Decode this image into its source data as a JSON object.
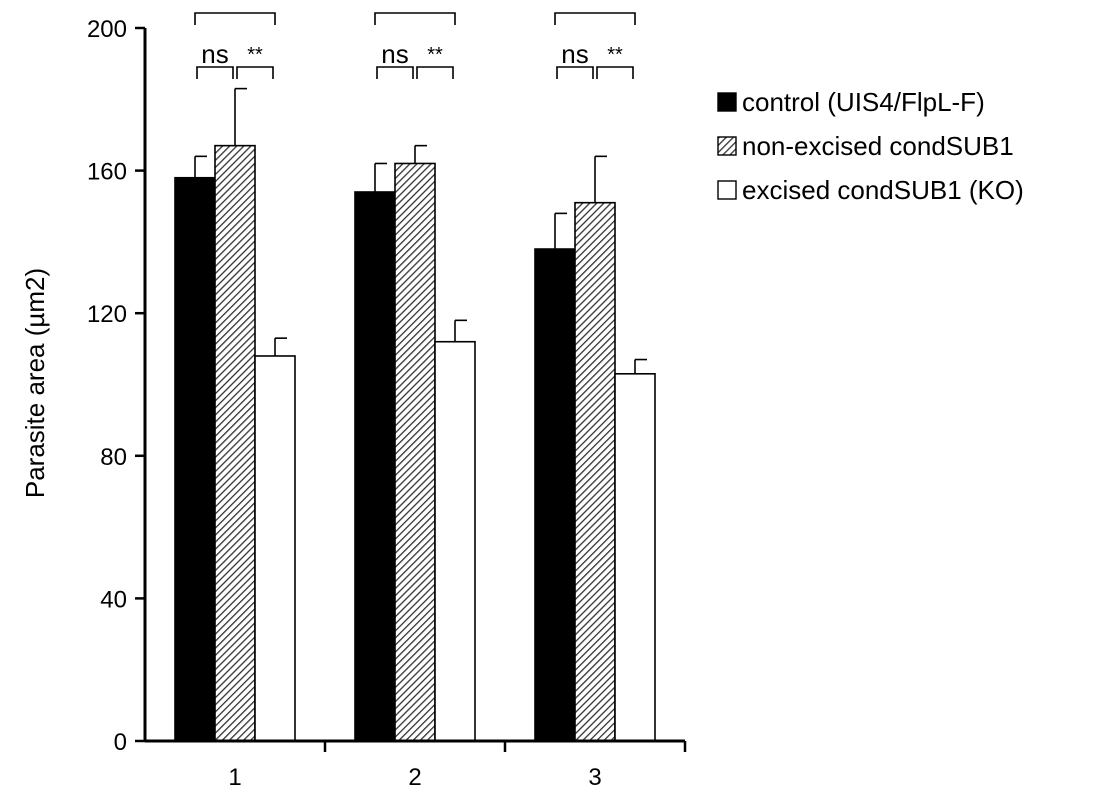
{
  "chart_data": {
    "type": "bar",
    "ylabel": "Parasite area (µm2)",
    "xlabel": "",
    "ylim": [
      0,
      200
    ],
    "yticks": [
      0,
      40,
      80,
      120,
      160,
      200
    ],
    "categories": [
      "1",
      "2",
      "3"
    ],
    "legend_position": "right",
    "series": [
      {
        "name": "control (UIS4/FlpL-F)",
        "fill": "solid-black",
        "color": "#000000",
        "values": [
          158,
          154,
          138
        ],
        "errors": [
          6,
          8,
          10
        ]
      },
      {
        "name": "non-excised condSUB1",
        "fill": "diagonal-hatch",
        "color": "#555555",
        "values": [
          167,
          162,
          151
        ],
        "errors": [
          16,
          5,
          13
        ]
      },
      {
        "name": "excised condSUB1 (KO)",
        "fill": "white",
        "color": "#ffffff",
        "values": [
          108,
          112,
          103
        ],
        "errors": [
          5,
          6,
          4
        ]
      }
    ],
    "significance": [
      {
        "from": 0,
        "to": 2,
        "label": "**",
        "level": "top"
      },
      {
        "from": 0,
        "to": 1,
        "label": "ns",
        "level": "low"
      },
      {
        "from": 1,
        "to": 2,
        "label": "**",
        "level": "low"
      }
    ]
  }
}
